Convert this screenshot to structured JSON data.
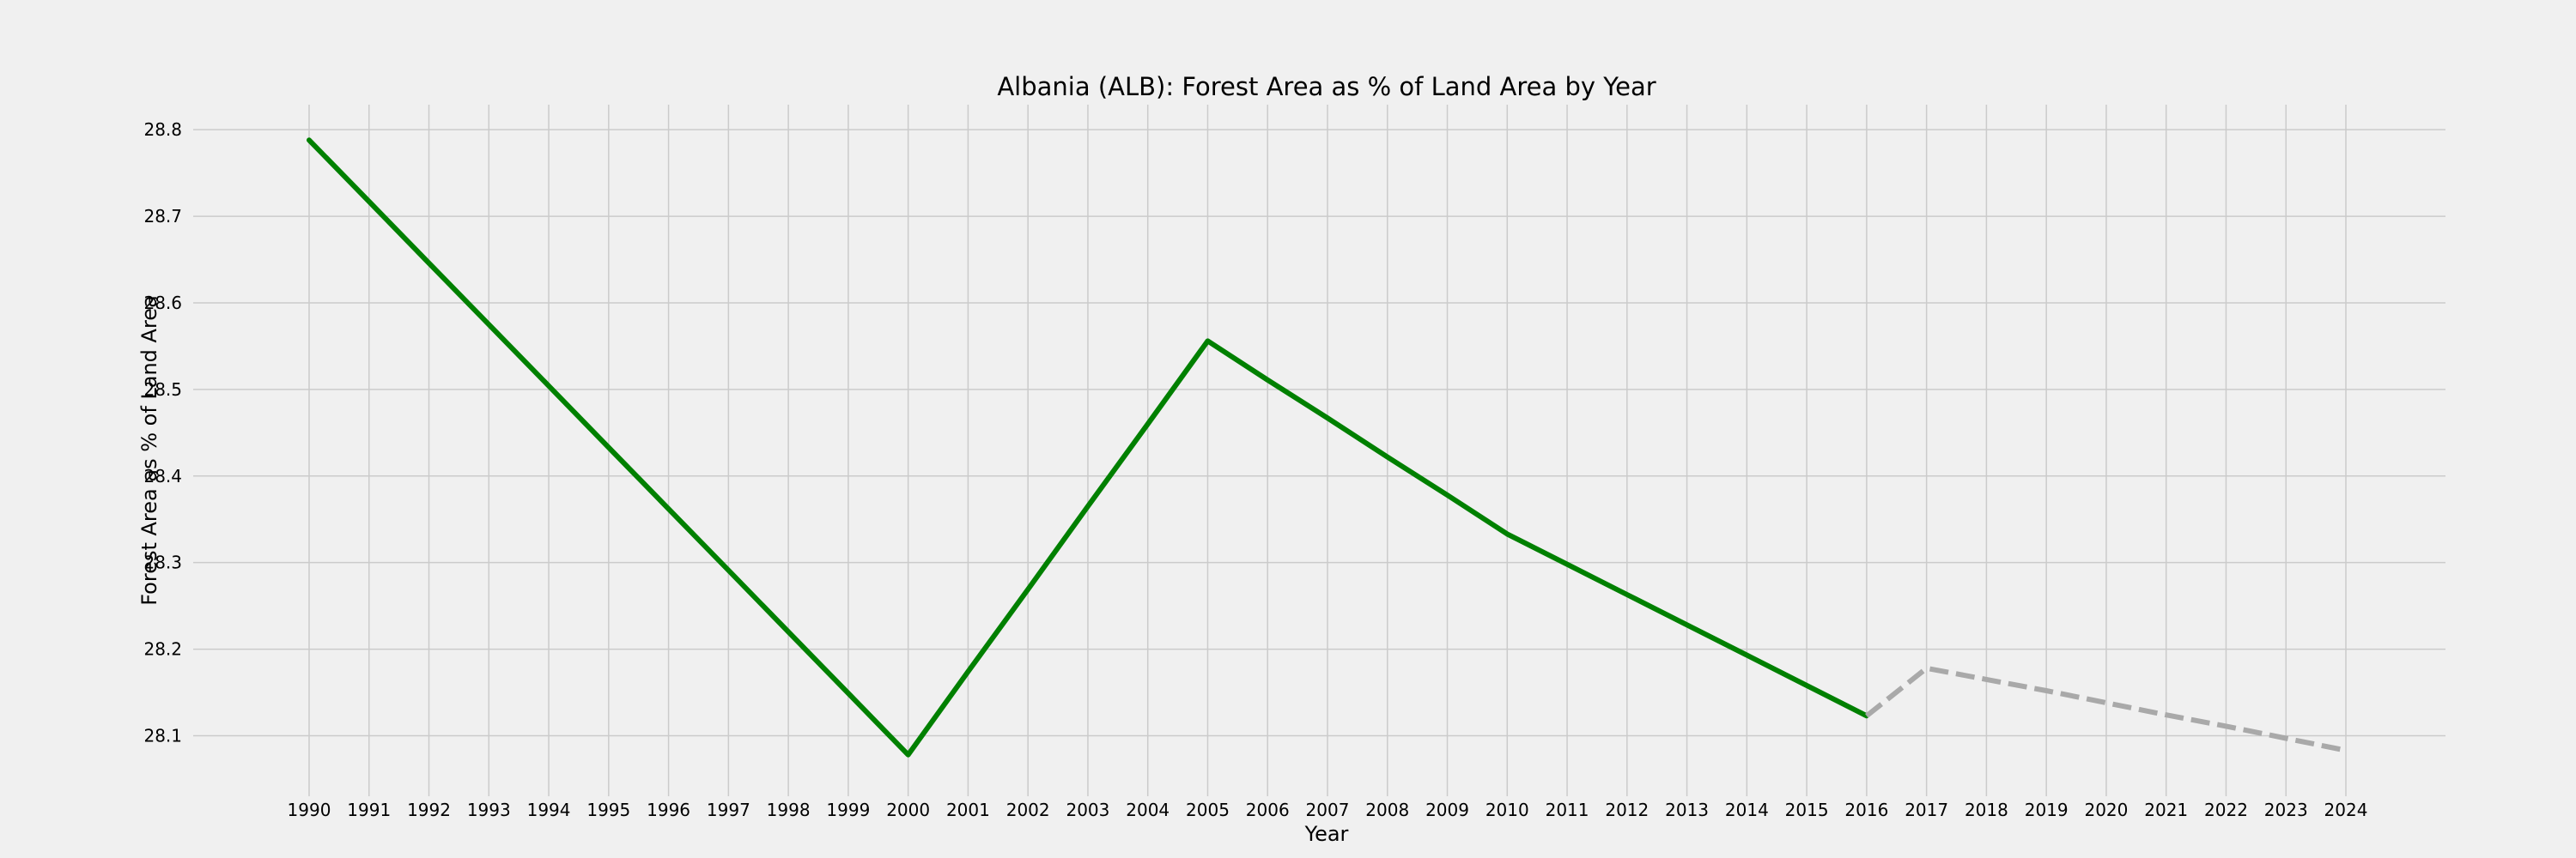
{
  "chart_data": {
    "type": "line",
    "title": "Albania (ALB): Forest Area as % of Land Area by Year",
    "xlabel": "Year",
    "ylabel": "Forest Area as % of Land Area",
    "categories": [
      "1990",
      "1991",
      "1992",
      "1993",
      "1994",
      "1995",
      "1996",
      "1997",
      "1998",
      "1999",
      "2000",
      "2001",
      "2002",
      "2003",
      "2004",
      "2005",
      "2006",
      "2007",
      "2008",
      "2009",
      "2010",
      "2011",
      "2012",
      "2013",
      "2014",
      "2015",
      "2016",
      "2017",
      "2018",
      "2019",
      "2020",
      "2021",
      "2022",
      "2023",
      "2024"
    ],
    "ylim": [
      28.04,
      28.82
    ],
    "yticks": [
      "28.1",
      "28.2",
      "28.3",
      "28.4",
      "28.5",
      "28.6",
      "28.7",
      "28.8"
    ],
    "grid": true,
    "series": [
      {
        "style": "solid",
        "color": "#008000",
        "x": [
          1990,
          1991,
          1992,
          1993,
          1994,
          1995,
          1996,
          1997,
          1998,
          1999,
          2000,
          2001,
          2002,
          2003,
          2004,
          2005,
          2006,
          2007,
          2008,
          2009,
          2010,
          2011,
          2012,
          2013,
          2014,
          2015,
          2016
        ],
        "values": [
          28.788,
          28.717,
          28.646,
          28.575,
          28.504,
          28.433,
          28.362,
          28.291,
          28.22,
          28.149,
          28.078,
          28.174,
          28.269,
          28.365,
          28.46,
          28.556,
          28.511,
          28.467,
          28.422,
          28.378,
          28.333,
          28.298,
          28.263,
          28.228,
          28.193,
          28.158,
          28.123
        ]
      },
      {
        "style": "dashed",
        "color": "#a9a9a9",
        "x": [
          2016,
          2017,
          2018,
          2019,
          2020,
          2021,
          2022,
          2023,
          2024
        ],
        "values": [
          28.123,
          28.178,
          28.165,
          28.152,
          28.138,
          28.124,
          28.111,
          28.097,
          28.083
        ]
      }
    ]
  }
}
